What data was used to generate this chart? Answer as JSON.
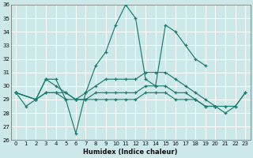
{
  "xlabel": "Humidex (Indice chaleur)",
  "bg_color": "#cce8e8",
  "grid_color": "#ffffff",
  "line_color": "#1a7a6e",
  "xlim": [
    -0.5,
    23.5
  ],
  "ylim": [
    26,
    36
  ],
  "yticks": [
    26,
    27,
    28,
    29,
    30,
    31,
    32,
    33,
    34,
    35,
    36
  ],
  "xticks": [
    0,
    1,
    2,
    3,
    4,
    5,
    6,
    7,
    8,
    9,
    10,
    11,
    12,
    13,
    14,
    15,
    16,
    17,
    18,
    19,
    20,
    21,
    22,
    23
  ],
  "series": [
    {
      "x": [
        0,
        1,
        2,
        3,
        4,
        5,
        6,
        7,
        8,
        9,
        10,
        11,
        12,
        13,
        14,
        15,
        16,
        17,
        18,
        19
      ],
      "y": [
        29.5,
        28.5,
        29.0,
        30.5,
        30.5,
        29.0,
        26.5,
        29.5,
        31.5,
        32.5,
        34.5,
        36.0,
        35.0,
        30.5,
        30.0,
        34.5,
        34.0,
        33.0,
        32.0,
        31.5
      ]
    },
    {
      "x": [
        0,
        2,
        3,
        4,
        5,
        6,
        7,
        8,
        9,
        10,
        11,
        12,
        13,
        14,
        15,
        16,
        17,
        18,
        19,
        20
      ],
      "y": [
        29.5,
        29.0,
        30.5,
        30.0,
        29.5,
        29.0,
        29.5,
        30.0,
        30.5,
        30.5,
        30.5,
        30.5,
        31.0,
        31.0,
        31.0,
        30.5,
        30.0,
        29.5,
        29.0,
        28.5
      ]
    },
    {
      "x": [
        0,
        2,
        3,
        4,
        5,
        6,
        7,
        8,
        9,
        10,
        11,
        12,
        13,
        14,
        15,
        16,
        17,
        18,
        19,
        20,
        21,
        22,
        23
      ],
      "y": [
        29.5,
        29.0,
        29.5,
        29.5,
        29.5,
        29.0,
        29.0,
        29.5,
        29.5,
        29.5,
        29.5,
        29.5,
        30.0,
        30.0,
        30.0,
        29.5,
        29.5,
        29.0,
        28.5,
        28.5,
        28.5,
        28.5,
        29.5
      ]
    },
    {
      "x": [
        0,
        2,
        3,
        4,
        5,
        6,
        7,
        8,
        9,
        10,
        11,
        12,
        13,
        14,
        15,
        16,
        17,
        18,
        19,
        20,
        21,
        22,
        23
      ],
      "y": [
        29.5,
        29.0,
        29.5,
        29.5,
        29.0,
        29.0,
        29.0,
        29.0,
        29.0,
        29.0,
        29.0,
        29.0,
        29.5,
        29.5,
        29.5,
        29.0,
        29.0,
        29.0,
        28.5,
        28.5,
        28.0,
        28.5,
        29.5
      ]
    }
  ]
}
